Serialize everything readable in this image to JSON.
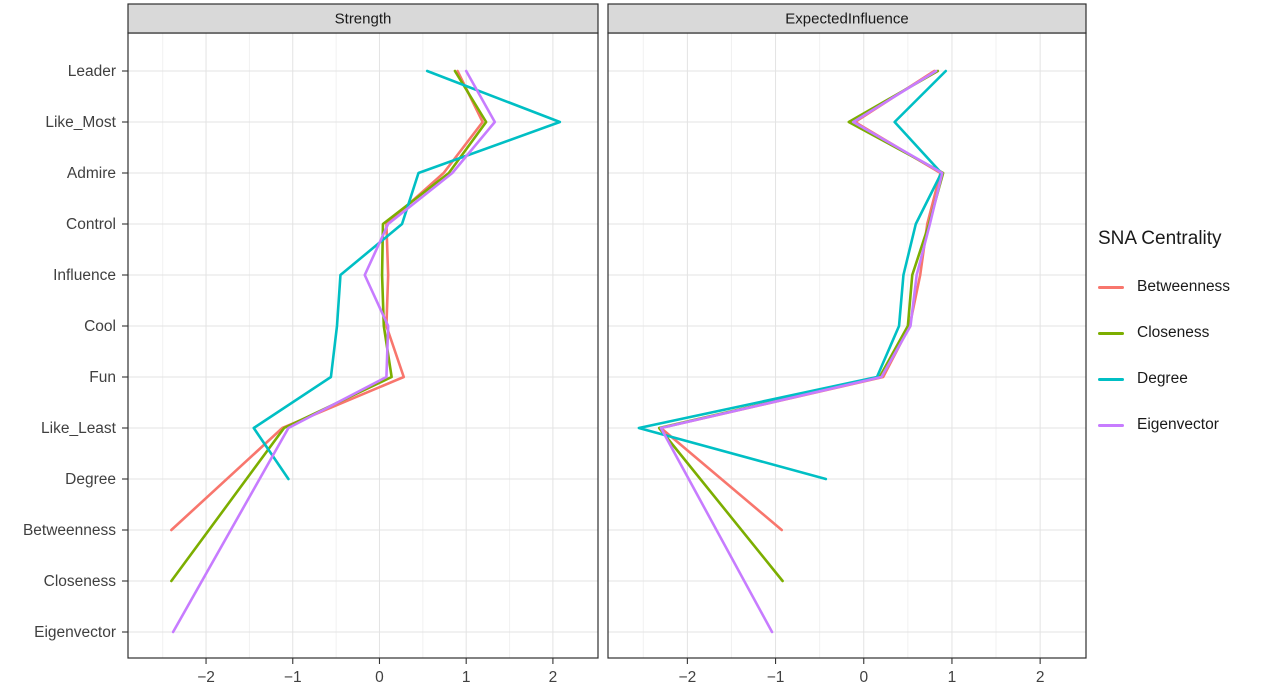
{
  "figure": {
    "background": "#ffffff"
  },
  "legend": {
    "title": "SNA Centrality",
    "items": [
      {
        "label": "Betweenness",
        "color": "#F8766D"
      },
      {
        "label": "Closeness",
        "color": "#7CAE00"
      },
      {
        "label": "Degree",
        "color": "#00BFC4"
      },
      {
        "label": "Eigenvector",
        "color": "#C77CFF"
      }
    ]
  },
  "chart_data": {
    "type": "line",
    "orientation": "horizontal-category-zigzag",
    "facets": [
      "Strength",
      "ExpectedInfluence"
    ],
    "categories": [
      "Leader",
      "Like_Most",
      "Admire",
      "Control",
      "Influence",
      "Cool",
      "Fun",
      "Like_Least",
      "Degree",
      "Betweenness",
      "Closeness",
      "Eigenvector"
    ],
    "x_ticks": [
      -2,
      -1,
      0,
      1,
      2
    ],
    "x_range": [
      -2.9,
      2.52
    ],
    "grid": "on",
    "legend_position": "right",
    "strip_background": "#d9d9d9",
    "series": [
      {
        "name": "Betweenness",
        "color": "#F8766D",
        "values": {
          "Strength": [
            0.9,
            1.19,
            0.74,
            0.08,
            0.1,
            0.08,
            0.28,
            -1.12,
            null,
            -2.4,
            null,
            null
          ],
          "ExpectedInfluence": [
            0.8,
            -0.1,
            0.87,
            0.72,
            0.64,
            0.52,
            0.22,
            -2.3,
            null,
            -0.93,
            null,
            null
          ]
        }
      },
      {
        "name": "Closeness",
        "color": "#7CAE00",
        "values": {
          "Strength": [
            0.87,
            1.23,
            0.8,
            0.04,
            0.03,
            0.05,
            0.14,
            -1.1,
            null,
            null,
            -2.4,
            null
          ],
          "ExpectedInfluence": [
            0.84,
            -0.17,
            0.9,
            0.74,
            0.55,
            0.5,
            0.18,
            -2.32,
            null,
            null,
            -0.92,
            null
          ]
        }
      },
      {
        "name": "Degree",
        "color": "#00BFC4",
        "values": {
          "Strength": [
            0.55,
            2.08,
            0.45,
            0.26,
            -0.45,
            -0.49,
            -0.56,
            -1.45,
            -1.05,
            null,
            null,
            null
          ],
          "ExpectedInfluence": [
            0.93,
            0.35,
            0.88,
            0.59,
            0.45,
            0.4,
            0.15,
            -2.55,
            -0.43,
            null,
            null,
            null
          ]
        }
      },
      {
        "name": "Eigenvector",
        "color": "#C77CFF",
        "values": {
          "Strength": [
            1.0,
            1.33,
            0.84,
            0.1,
            -0.17,
            0.1,
            0.08,
            -1.05,
            null,
            null,
            null,
            -2.38
          ],
          "ExpectedInfluence": [
            0.82,
            -0.12,
            0.89,
            0.75,
            0.6,
            0.53,
            0.2,
            -2.3,
            null,
            null,
            null,
            -1.04
          ]
        }
      }
    ]
  }
}
